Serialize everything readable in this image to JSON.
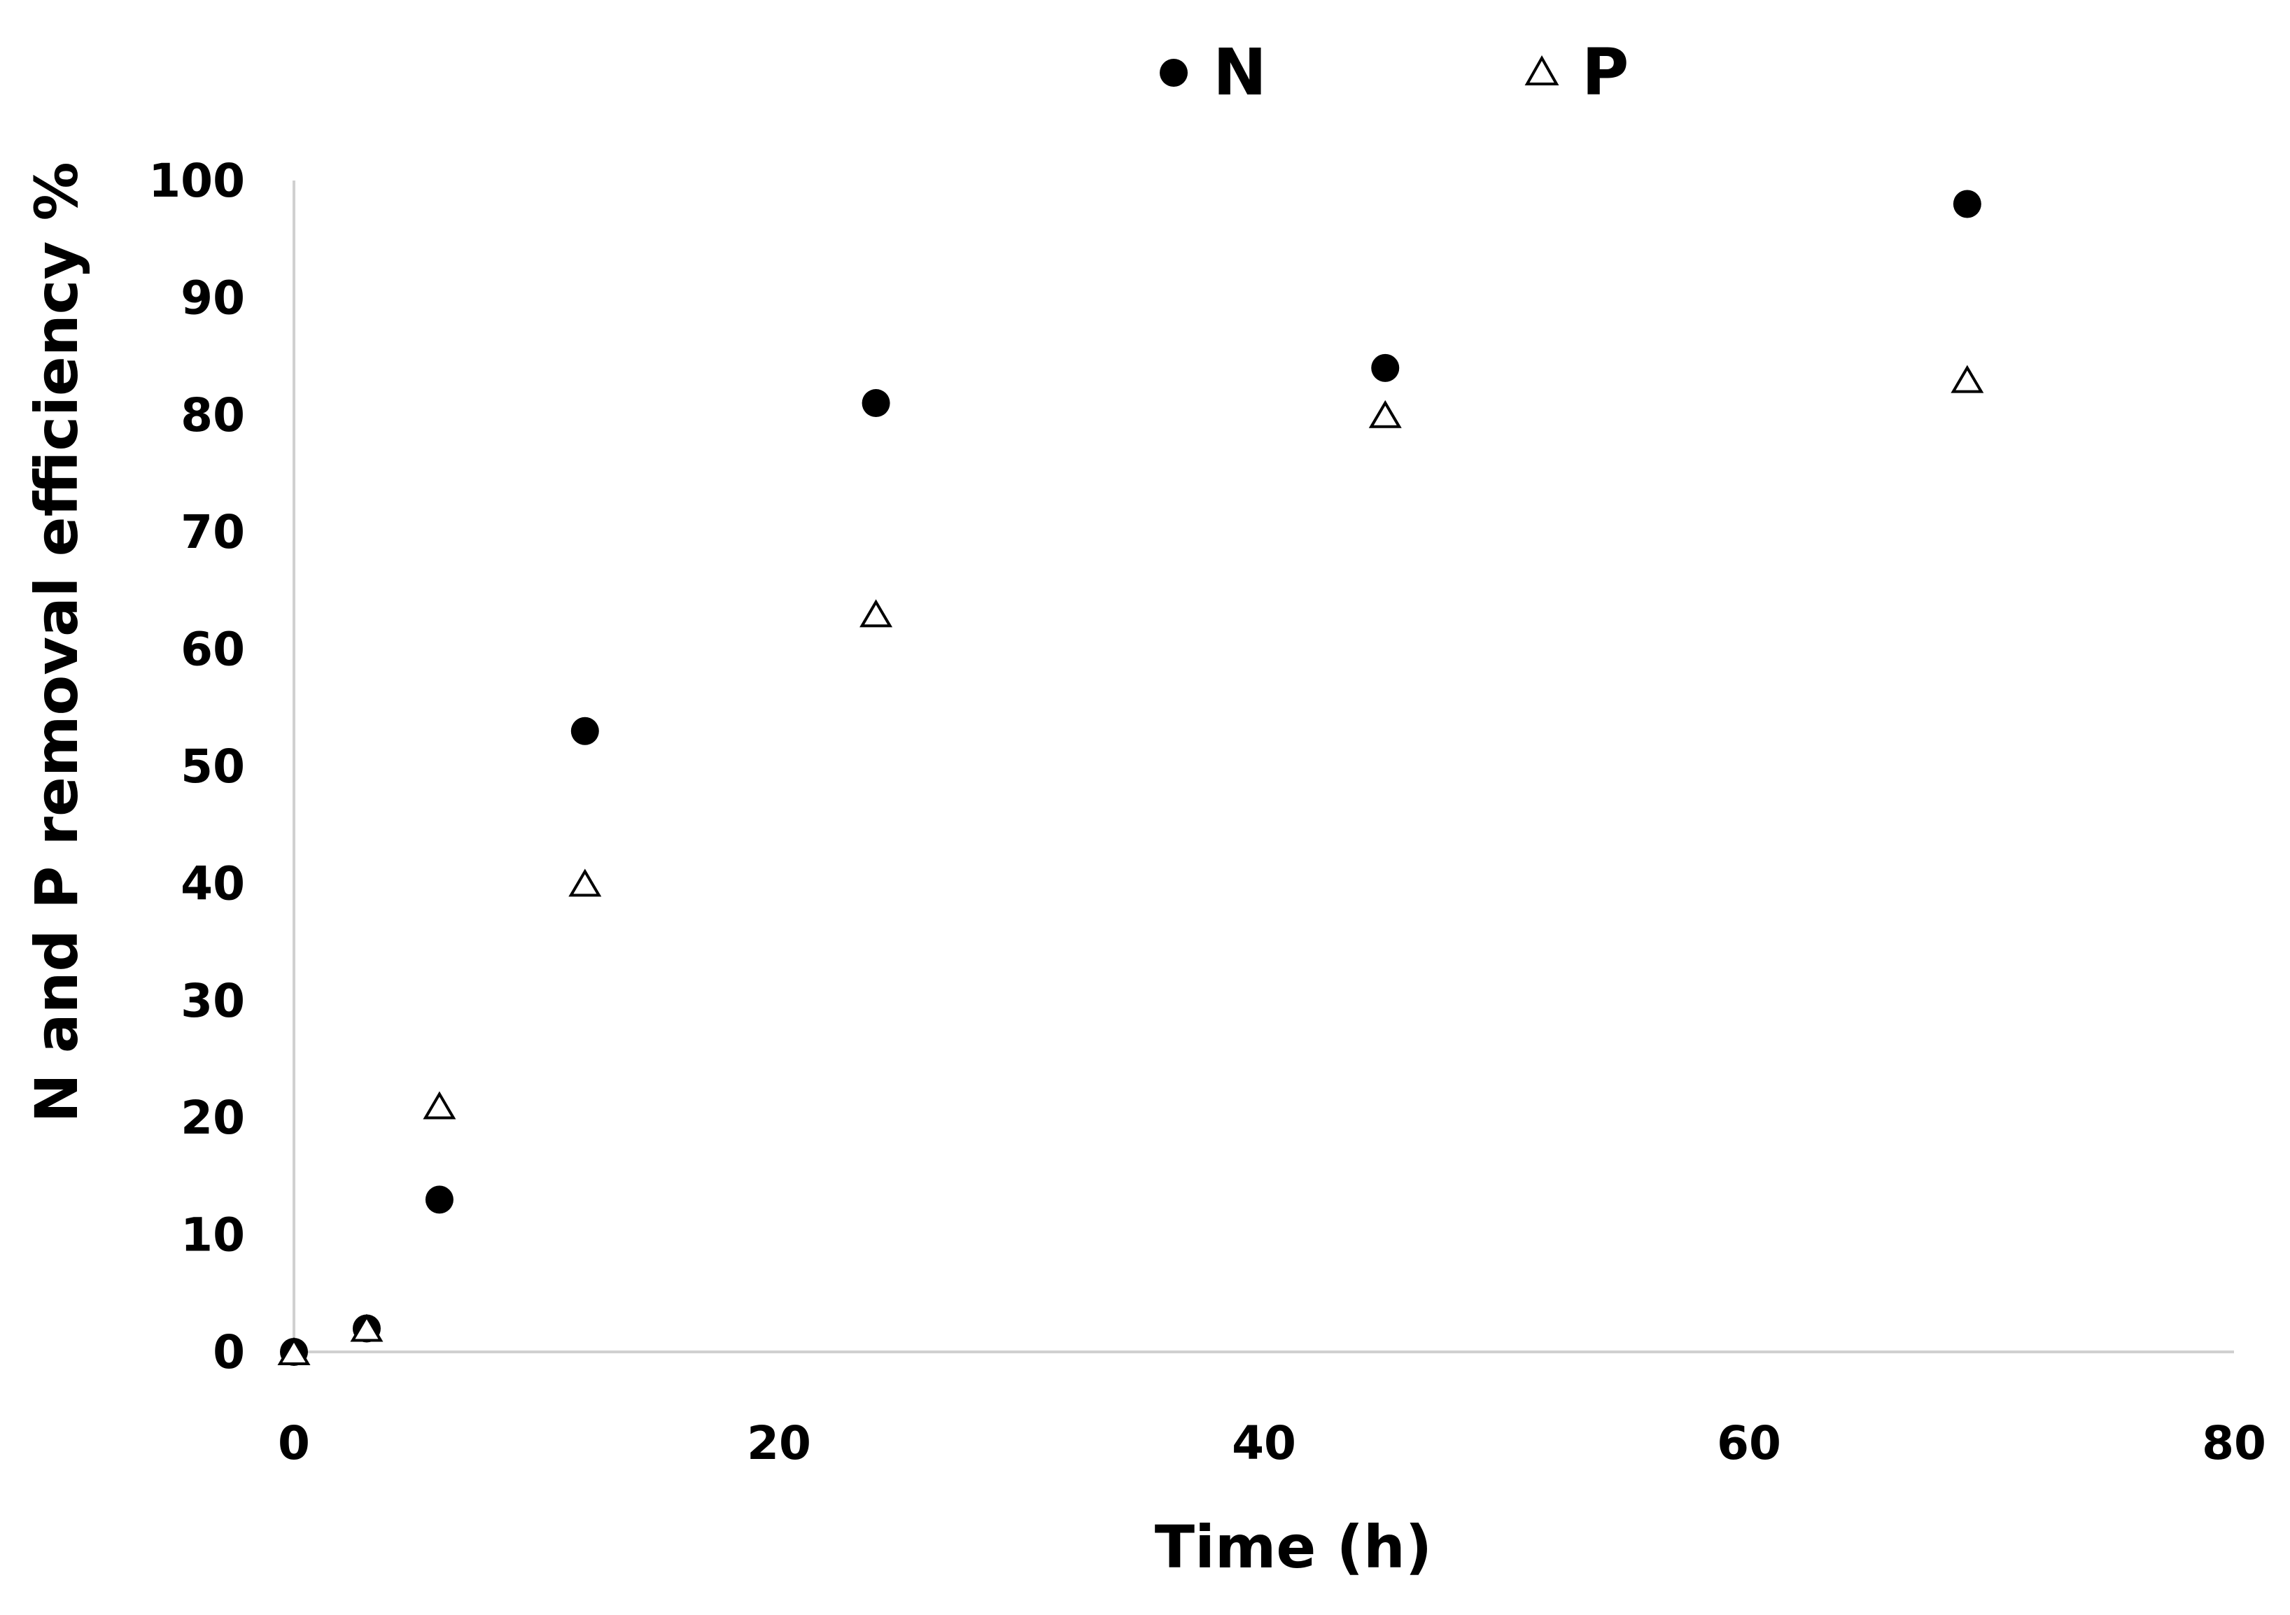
{
  "chart_data": {
    "type": "scatter",
    "title": "",
    "xlabel": "Time (h)",
    "ylabel": "N and P removal efficiency %",
    "xlim": [
      0,
      80
    ],
    "ylim": [
      0,
      100
    ],
    "xticks": [
      0,
      20,
      40,
      60,
      80
    ],
    "yticks": [
      0,
      10,
      20,
      30,
      40,
      50,
      60,
      70,
      80,
      90,
      100
    ],
    "grid": false,
    "legend": "top-center",
    "series": [
      {
        "name": "N",
        "marker": "filled-circle",
        "color": "#000000",
        "x": [
          0,
          3,
          6,
          12,
          24,
          45,
          69
        ],
        "y": [
          0,
          2,
          13,
          53,
          81,
          84,
          98
        ]
      },
      {
        "name": "P",
        "marker": "open-triangle",
        "color": "#000000",
        "x": [
          0,
          3,
          6,
          12,
          24,
          45,
          69
        ],
        "y": [
          0,
          2,
          21,
          40,
          63,
          80,
          83
        ]
      }
    ]
  }
}
